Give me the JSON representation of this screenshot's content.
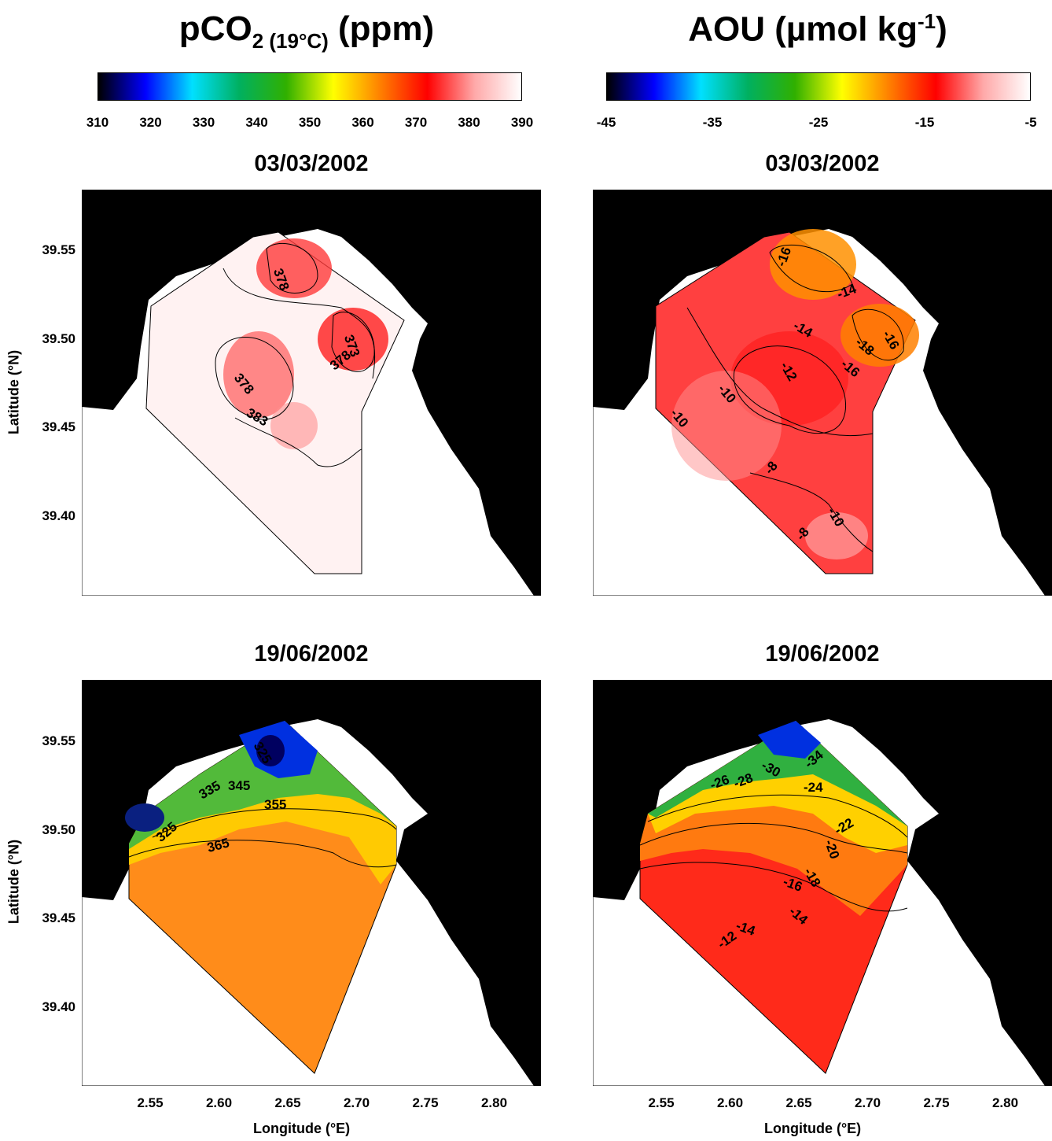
{
  "left_header": {
    "title_main": "pCO",
    "title_sub": "2 (19°C)",
    "title_unit": " (ppm)",
    "colorbar_ticks": [
      "310",
      "320",
      "330",
      "340",
      "350",
      "360",
      "370",
      "380",
      "390"
    ]
  },
  "right_header": {
    "title_main": "AOU (µmol kg",
    "title_sup": "-1",
    "title_end": ")",
    "colorbar_ticks": [
      "-45",
      "-35",
      "-25",
      "-15",
      "-5"
    ]
  },
  "colorbar_colors": [
    "#000000",
    "#0000ff",
    "#00e0ff",
    "#00b060",
    "#30b000",
    "#ffff00",
    "#ff8000",
    "#ff0000",
    "#ffa8a8",
    "#ffffff"
  ],
  "dates": {
    "top_left": "03/03/2002",
    "top_right": "03/03/2002",
    "bottom_left": "19/06/2002",
    "bottom_right": "19/06/2002"
  },
  "axes": {
    "ylabel": "Latitude (°N)",
    "xlabel": "Longitude (°E)",
    "yticks": [
      "39.55",
      "39.50",
      "39.45",
      "39.40"
    ],
    "xticks": [
      "2.55",
      "2.60",
      "2.65",
      "2.70",
      "2.75",
      "2.80"
    ]
  },
  "contour_labels": {
    "top_left": [
      "378",
      "373",
      "378",
      "378",
      "383"
    ],
    "top_right": [
      "-16",
      "-14",
      "-14",
      "-18",
      "-16",
      "-16",
      "-12",
      "-10",
      "-10",
      "-8",
      "-10",
      "-8"
    ],
    "bottom_left": [
      "325",
      "325",
      "335",
      "345",
      "355",
      "365"
    ],
    "bottom_right": [
      "-34",
      "-30",
      "-26",
      "-28",
      "-24",
      "-22",
      "-20",
      "-18",
      "-16",
      "-14",
      "-14",
      "-12"
    ]
  }
}
